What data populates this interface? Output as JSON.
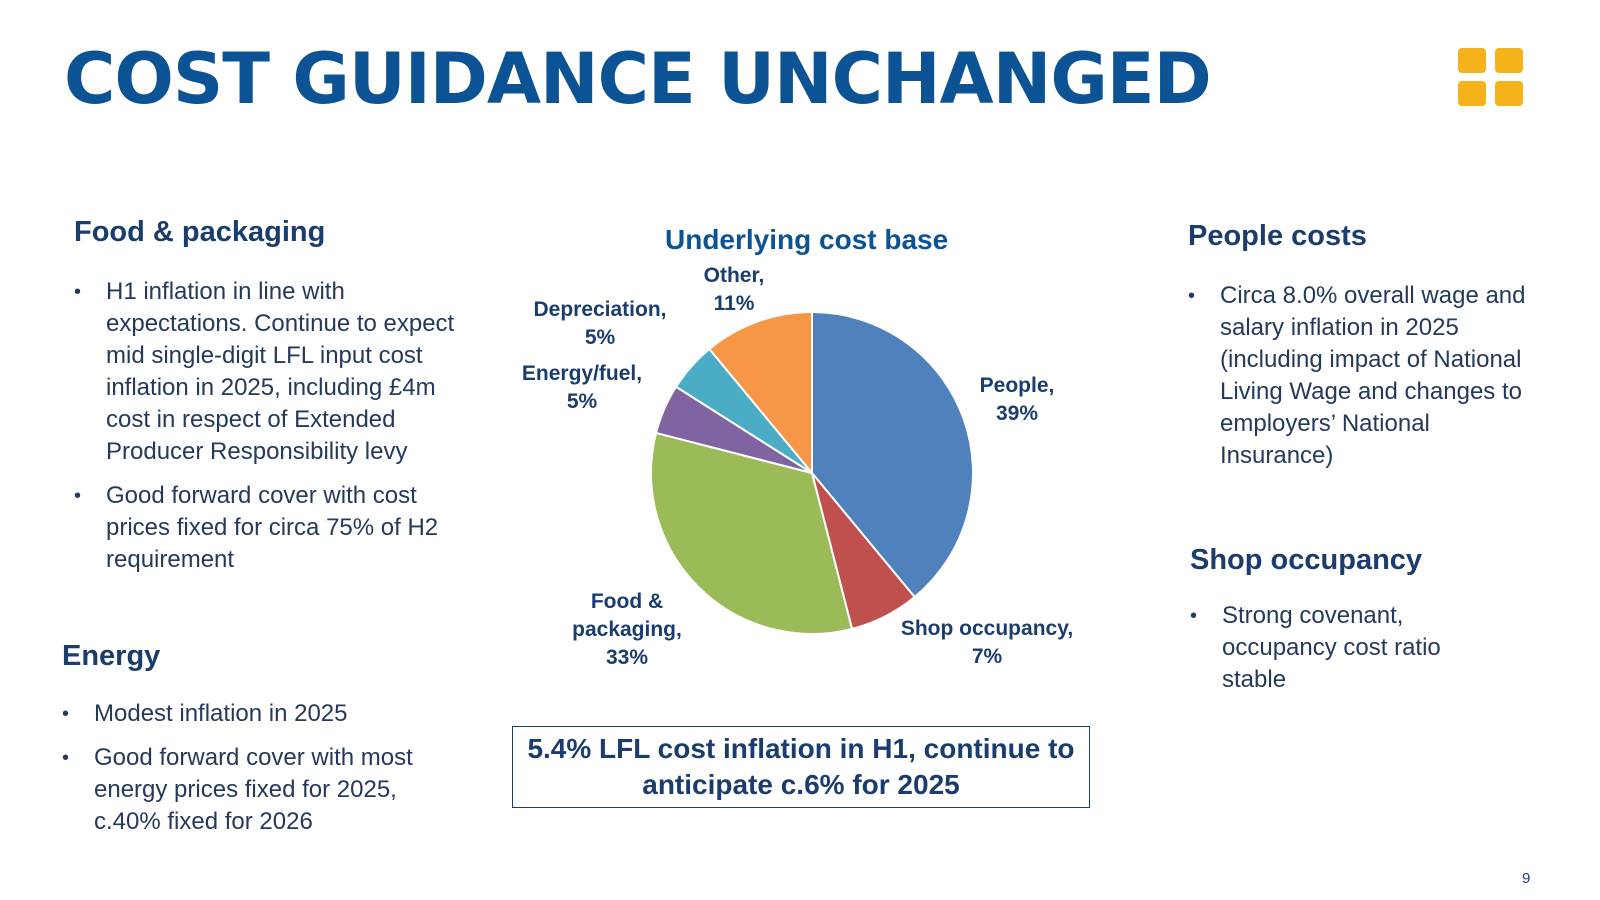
{
  "title": "COST GUIDANCE UNCHANGED",
  "left": {
    "food_heading": "Food & packaging",
    "food_bullets": [
      "H1 inflation in line with expectations.  Continue to expect mid single-digit LFL input cost inflation in 2025, including £4m cost in respect of Extended Producer Responsibility levy",
      "Good forward cover with cost prices fixed for circa 75% of H2 requirement"
    ],
    "energy_heading": "Energy",
    "energy_bullets": [
      "Modest inflation in 2025",
      "Good forward cover with most energy prices fixed for 2025, c.40% fixed for 2026"
    ]
  },
  "right": {
    "people_heading": "People costs",
    "people_bullets": [
      "Circa 8.0% overall wage and salary inflation in 2025 (including impact of National Living Wage and changes to employers’ National Insurance)"
    ],
    "shop_heading": "Shop occupancy",
    "shop_bullets": [
      "Strong covenant, occupancy cost ratio stable"
    ]
  },
  "chart_data": {
    "type": "pie",
    "title": "Underlying cost base",
    "slices": [
      {
        "label_lines": [
          "People,",
          "39%"
        ],
        "value": 39,
        "color": "#4f81bd"
      },
      {
        "label_lines": [
          "Shop occupancy,",
          "7%"
        ],
        "value": 7,
        "color": "#c0504d"
      },
      {
        "label_lines": [
          "Food &",
          "packaging,",
          "33%"
        ],
        "value": 33,
        "color": "#9bbb59"
      },
      {
        "label_lines": [
          "Energy/fuel,",
          "5%"
        ],
        "value": 5,
        "color": "#8064a2"
      },
      {
        "label_lines": [
          "Depreciation,",
          "5%"
        ],
        "value": 5,
        "color": "#4bacc6"
      },
      {
        "label_lines": [
          "Other,",
          "11%"
        ],
        "value": 11,
        "color": "#f79646"
      }
    ]
  },
  "callout": "5.4% LFL cost inflation in H1, continue to anticipate c.6% for 2025",
  "page_number": "9",
  "colors": {
    "title": "#0b5394",
    "text": "#1b3d6e",
    "logo": "#f6b21b"
  },
  "icons": {
    "logo": "four-yellow-squares-logo"
  }
}
